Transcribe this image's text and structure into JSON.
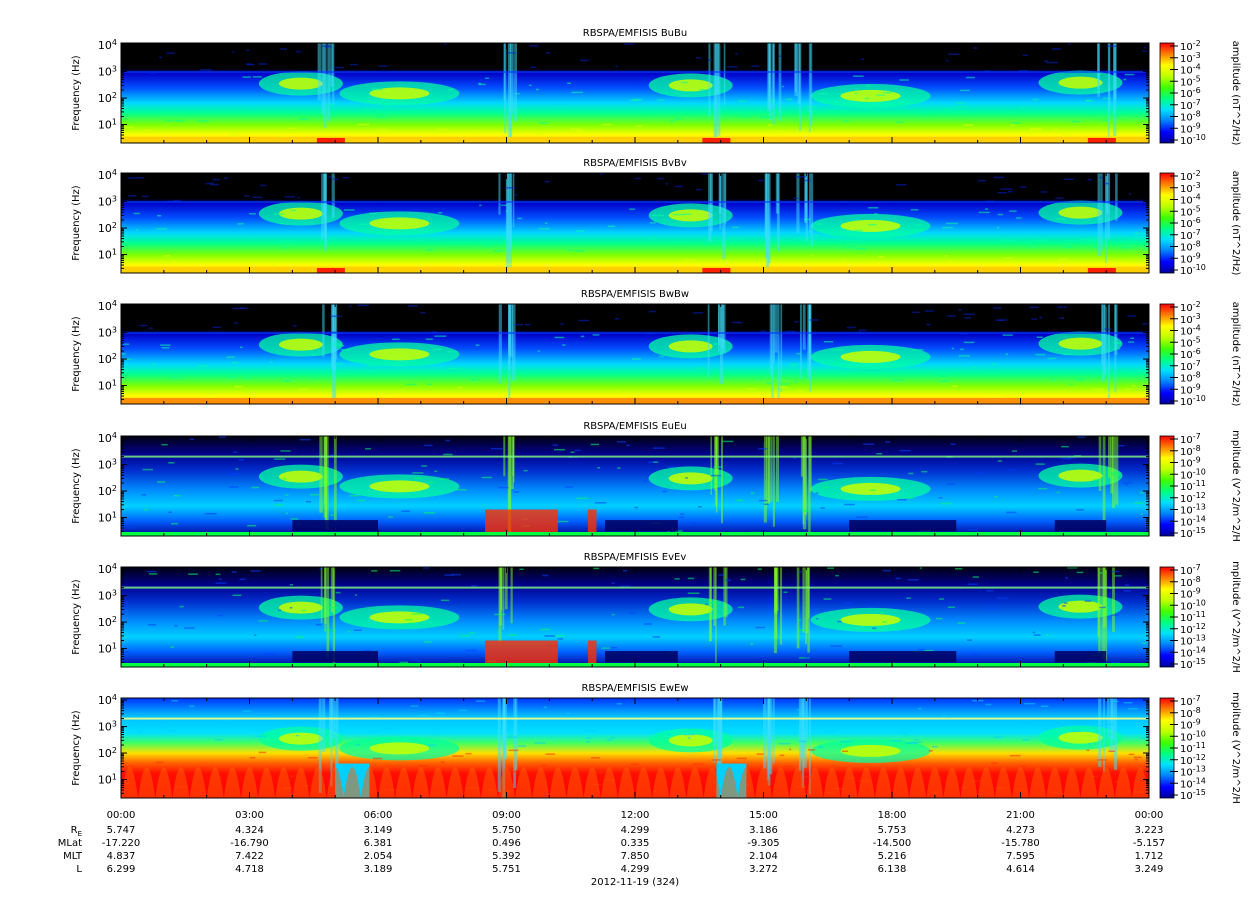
{
  "chart_data": [
    {
      "type": "heatmap",
      "title": "RBSPA/EMFISIS  BuBu",
      "ylabel": "Frequency (Hz)",
      "ylim": [
        2,
        12000
      ],
      "yscale": "log",
      "yticks": [
        "10^1",
        "10^2",
        "10^3",
        "10^4"
      ],
      "colorbar_label": "amplitude (nT^2/Hz)",
      "colorbar_ticks": [
        "10^-2",
        "10^-3",
        "10^-4",
        "10^-5",
        "10^-6",
        "10^-7",
        "10^-8",
        "10^-9",
        "10^-10"
      ]
    },
    {
      "type": "heatmap",
      "title": "RBSPA/EMFISIS  BvBv",
      "ylabel": "Frequency (Hz)",
      "ylim": [
        2,
        12000
      ],
      "yscale": "log",
      "yticks": [
        "10^1",
        "10^2",
        "10^3",
        "10^4"
      ],
      "colorbar_label": "amplitude (nT^2/Hz)",
      "colorbar_ticks": [
        "10^-2",
        "10^-3",
        "10^-4",
        "10^-5",
        "10^-6",
        "10^-7",
        "10^-8",
        "10^-9",
        "10^-10"
      ]
    },
    {
      "type": "heatmap",
      "title": "RBSPA/EMFISIS  BwBw",
      "ylabel": "Frequency (Hz)",
      "ylim": [
        2,
        12000
      ],
      "yscale": "log",
      "yticks": [
        "10^1",
        "10^2",
        "10^3",
        "10^4"
      ],
      "colorbar_label": "amplitude (nT^2/Hz)",
      "colorbar_ticks": [
        "10^-2",
        "10^-3",
        "10^-4",
        "10^-5",
        "10^-6",
        "10^-7",
        "10^-8",
        "10^-9",
        "10^-10"
      ]
    },
    {
      "type": "heatmap",
      "title": "RBSPA/EMFISIS  EuEu",
      "ylabel": "Frequency (Hz)",
      "ylim": [
        2,
        12000
      ],
      "yscale": "log",
      "yticks": [
        "10^1",
        "10^2",
        "10^3",
        "10^4"
      ],
      "colorbar_label": "mplitude (V^2/m^2/H",
      "colorbar_ticks": [
        "10^-7",
        "10^-8",
        "10^-9",
        "10^-10",
        "10^-11",
        "10^-12",
        "10^-13",
        "10^-14",
        "10^-15"
      ]
    },
    {
      "type": "heatmap",
      "title": "RBSPA/EMFISIS  EvEv",
      "ylabel": "Frequency (Hz)",
      "ylim": [
        2,
        12000
      ],
      "yscale": "log",
      "yticks": [
        "10^1",
        "10^2",
        "10^3",
        "10^4"
      ],
      "colorbar_label": "mplitude (V^2/m^2/H",
      "colorbar_ticks": [
        "10^-7",
        "10^-8",
        "10^-9",
        "10^-10",
        "10^-11",
        "10^-12",
        "10^-13",
        "10^-14",
        "10^-15"
      ]
    },
    {
      "type": "heatmap",
      "title": "RBSPA/EMFISIS  EwEw",
      "ylabel": "Frequency (Hz)",
      "ylim": [
        2,
        12000
      ],
      "yscale": "log",
      "yticks": [
        "10^1",
        "10^2",
        "10^3",
        "10^4"
      ],
      "colorbar_label": "mplitude (V^2/m^2/H",
      "colorbar_ticks": [
        "10^-7",
        "10^-8",
        "10^-9",
        "10^-10",
        "10^-11",
        "10^-12",
        "10^-13",
        "10^-14",
        "10^-15"
      ]
    }
  ],
  "colormap": [
    "#0000a0",
    "#0000ff",
    "#0080ff",
    "#00e0ff",
    "#00ff80",
    "#40ff00",
    "#c0ff00",
    "#ffff00",
    "#ff8000",
    "#ff0000"
  ],
  "x_axis": {
    "ticks": [
      "00:00",
      "03:00",
      "06:00",
      "09:00",
      "12:00",
      "15:00",
      "18:00",
      "21:00",
      "00:00"
    ],
    "rows": [
      {
        "label": "R_E",
        "values": [
          "5.747",
          "4.324",
          "3.149",
          "5.750",
          "4.299",
          "3.186",
          "5.753",
          "4.273",
          "3.223"
        ]
      },
      {
        "label": "MLat",
        "values": [
          "-17.220",
          "-16.790",
          "6.381",
          "0.496",
          "0.335",
          "-9.305",
          "-14.500",
          "-15.780",
          "-5.157"
        ]
      },
      {
        "label": "MLT",
        "values": [
          "4.837",
          "7.422",
          "2.054",
          "5.392",
          "7.850",
          "2.104",
          "5.216",
          "7.595",
          "1.712"
        ]
      },
      {
        "label": "L",
        "values": [
          "6.299",
          "4.718",
          "3.189",
          "5.751",
          "4.299",
          "3.272",
          "6.138",
          "4.614",
          "3.249"
        ]
      }
    ],
    "date_label": "2012-11-19 (324)"
  }
}
